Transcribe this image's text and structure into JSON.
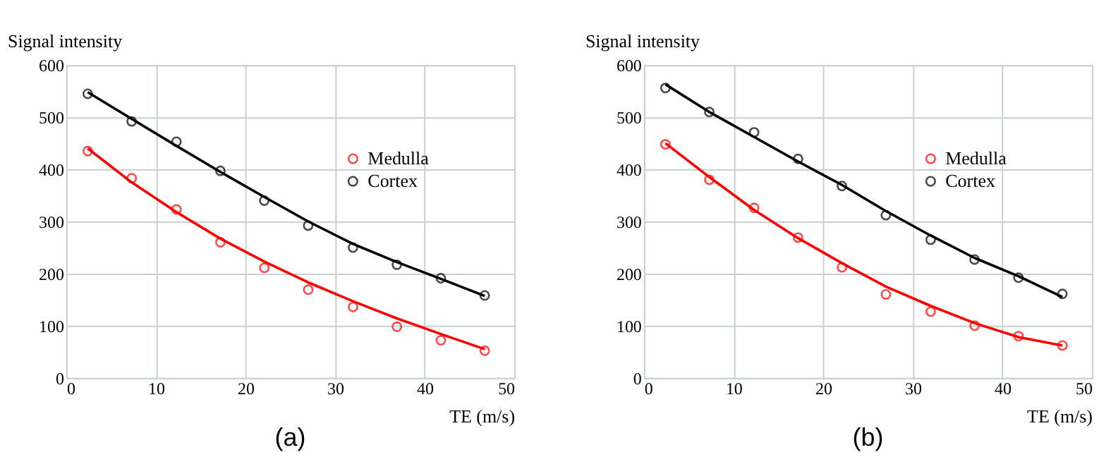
{
  "chart_data": [
    {
      "type": "scatter",
      "title": "(a)",
      "xlabel": "TE (m/s)",
      "ylabel": "Signal intensity",
      "xlim": [
        0,
        50
      ],
      "xticks": [
        0,
        10,
        20,
        30,
        40,
        50
      ],
      "ylim": [
        0,
        600
      ],
      "yticks": [
        0,
        100,
        200,
        300,
        400,
        500,
        600
      ],
      "grid": true,
      "legend": "top right",
      "marker": "circle",
      "x": [
        2.4,
        7.3,
        12.3,
        17.2,
        22.1,
        27,
        32,
        36.9,
        41.8,
        46.7
      ],
      "series": [
        {
          "name": "Medulla",
          "color": "#ff0000",
          "values": [
            435,
            383,
            323,
            260,
            211,
            169,
            136,
            98,
            72,
            52
          ]
        },
        {
          "name": "Cortex",
          "color": "#000000",
          "values": [
            545,
            492,
            453,
            397,
            340,
            292,
            250,
            217,
            191,
            158
          ]
        },
        {
          "type": "line",
          "marker": "none",
          "color": "#ff0000",
          "x": [
            2.4,
            7.3,
            12.3,
            17.2,
            22.1,
            27,
            32,
            36.9,
            41.8,
            46.7
          ],
          "values": [
            440,
            375,
            318,
            267,
            223,
            183,
            147,
            114,
            84,
            55
          ]
        },
        {
          "type": "line",
          "marker": "none",
          "color": "#000000",
          "x": [
            2.4,
            7.3,
            12.3,
            17.2,
            22.1,
            27,
            32,
            36.9,
            41.8,
            46.7
          ],
          "values": [
            548,
            497,
            445,
            395,
            347,
            300,
            257,
            222,
            190,
            157
          ]
        }
      ]
    },
    {
      "type": "scatter",
      "title": "(b)",
      "xlabel": "TE (m/s)",
      "ylabel": "Signal intensity",
      "xlim": [
        0,
        50
      ],
      "xticks": [
        0,
        10,
        20,
        30,
        40,
        50
      ],
      "ylim": [
        0,
        600
      ],
      "yticks": [
        0,
        100,
        200,
        300,
        400,
        500,
        600
      ],
      "grid": true,
      "legend": "top right",
      "marker": "circle",
      "x": [
        2.4,
        7.3,
        12.3,
        17.2,
        22.1,
        27,
        32,
        36.9,
        41.8,
        46.7
      ],
      "series": [
        {
          "name": "Medulla",
          "color": "#ff0000",
          "values": [
            448,
            380,
            326,
            269,
            212,
            160,
            127,
            100,
            80,
            62
          ]
        },
        {
          "name": "Cortex",
          "color": "#000000",
          "values": [
            556,
            510,
            471,
            420,
            368,
            312,
            265,
            227,
            192,
            161
          ]
        },
        {
          "type": "line",
          "marker": "none",
          "color": "#ff0000",
          "x": [
            2.4,
            7.3,
            12.3,
            17.2,
            22.1,
            27,
            32,
            36.9,
            41.8,
            46.7
          ],
          "values": [
            450,
            385,
            322,
            268,
            220,
            175,
            138,
            105,
            78,
            62
          ]
        },
        {
          "type": "line",
          "marker": "none",
          "color": "#000000",
          "x": [
            2.4,
            7.3,
            12.3,
            17.2,
            22.1,
            27,
            32,
            36.9,
            41.8,
            46.7
          ],
          "values": [
            563,
            510,
            462,
            415,
            370,
            320,
            273,
            230,
            195,
            155
          ]
        }
      ]
    }
  ]
}
